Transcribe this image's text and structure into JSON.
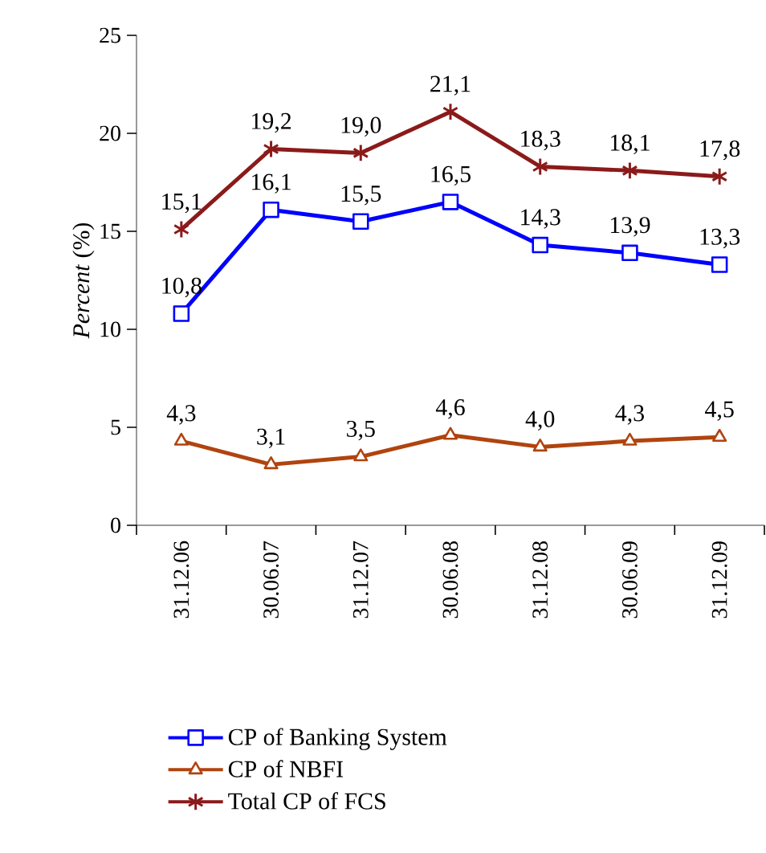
{
  "chart_data": {
    "type": "line",
    "ylabel": "*Percent* (%)",
    "categories": [
      "31.12.06",
      "30.06.07",
      "31.12.07",
      "30.06.08",
      "31.12.08",
      "30.06.09",
      "31.12.09"
    ],
    "series": [
      {
        "name": "CP of Banking System",
        "color": "#0000ff",
        "marker": "square",
        "values": [
          10.8,
          16.1,
          15.5,
          16.5,
          14.3,
          13.9,
          13.3
        ],
        "value_labels": [
          "10,8",
          "16,1",
          "15,5",
          "16,5",
          "14,3",
          "13,9",
          "13,3"
        ]
      },
      {
        "name": "CP of NBFI",
        "color": "#b0440f",
        "marker": "triangle",
        "values": [
          4.3,
          3.1,
          3.5,
          4.6,
          4.0,
          4.3,
          4.5
        ],
        "value_labels": [
          "4,3",
          "3,1",
          "3,5",
          "4,6",
          "4,0",
          "4,3",
          "4,5"
        ]
      },
      {
        "name": "Total CP of FCS",
        "color": "#8b1a1a",
        "marker": "cross",
        "values": [
          15.1,
          19.2,
          19.0,
          21.1,
          18.3,
          18.1,
          17.8
        ],
        "value_labels": [
          "15,1",
          "19,2",
          "19,0",
          "21,1",
          "18,3",
          "18,1",
          "17,8"
        ]
      }
    ],
    "ylim": [
      0,
      25
    ],
    "yticks": [
      0,
      5,
      10,
      15,
      20,
      25
    ],
    "grid": false,
    "legend": "bottom",
    "line_style": "solid"
  }
}
